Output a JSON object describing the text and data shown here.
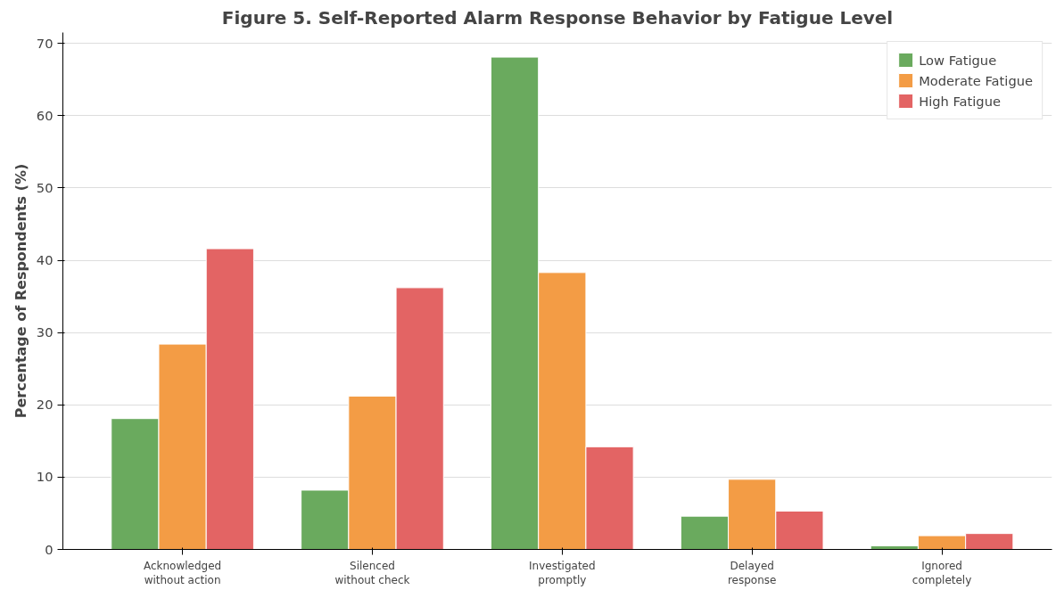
{
  "chart_data": {
    "type": "bar",
    "title": "Figure 5. Self-Reported Alarm Response Behavior by Fatigue Level",
    "ylabel": "Percentage of Respondents (%)",
    "categories": [
      "Acknowledged\nwithout action",
      "Silenced\nwithout check",
      "Investigated\npromptly",
      "Delayed\nresponse",
      "Ignored\ncompletely"
    ],
    "series": [
      {
        "name": "Low Fatigue",
        "color": "#6aaa5e",
        "values": [
          18.1,
          8.2,
          68.1,
          4.6,
          0.5
        ]
      },
      {
        "name": "Moderate Fatigue",
        "color": "#f39c45",
        "values": [
          28.4,
          21.2,
          38.3,
          9.7,
          1.9
        ]
      },
      {
        "name": "High Fatigue",
        "color": "#e36464",
        "values": [
          41.6,
          36.2,
          14.2,
          5.3,
          2.2
        ]
      }
    ],
    "ylim": [
      0,
      71.5
    ],
    "yticks": [
      0,
      10,
      20,
      30,
      40,
      50,
      60,
      70
    ],
    "grid": "y",
    "legend": "top right"
  }
}
